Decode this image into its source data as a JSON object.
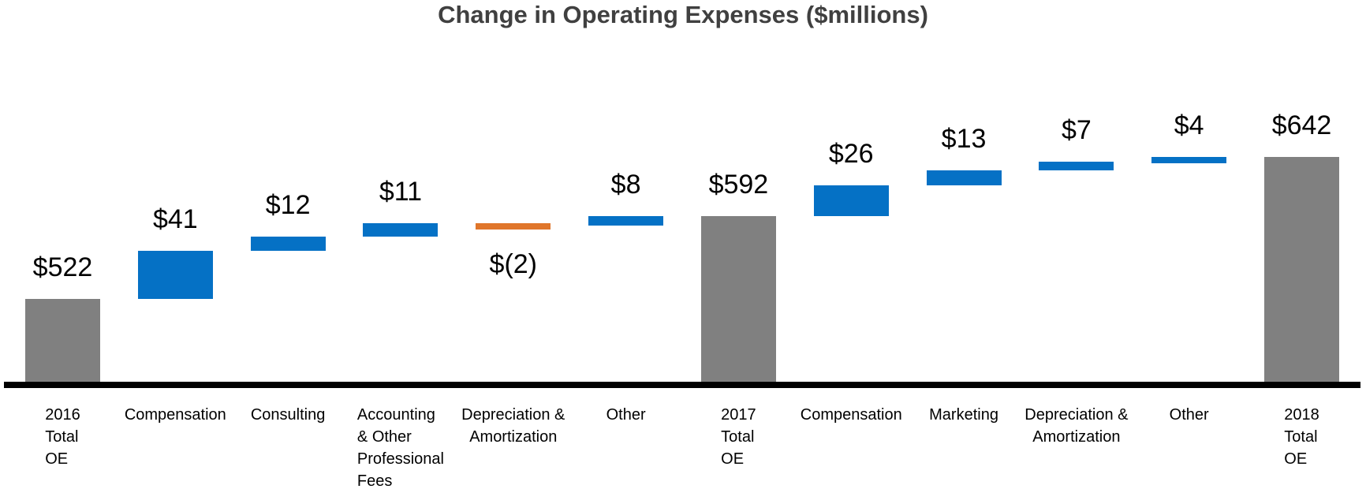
{
  "chart_data": {
    "type": "waterfall",
    "title": "Change in Operating Expenses ($millions)",
    "unit": "$millions",
    "axis": {
      "baseline_value": 452,
      "y_axis_visible": false,
      "gridlines": false,
      "legend": "none",
      "x_axis_line": true
    },
    "colors": {
      "total_bar": "#808080",
      "increase_bar": "#0571C5",
      "decrease_bar": "#E0762B",
      "axis_line": "#000000",
      "title_text": "#404040",
      "label_text": "#000000"
    },
    "totals": {
      "2016": 522,
      "2017": 592,
      "2018": 642
    },
    "categories": [
      {
        "label_lines": [
          "2016",
          "Total",
          "OE"
        ],
        "label_align": "left",
        "kind": "total",
        "value": 522,
        "value_label": "$522",
        "value_label_position": "above"
      },
      {
        "label_lines": [
          "Compensation"
        ],
        "label_align": "center",
        "kind": "increase",
        "value": 41,
        "value_label": "$41",
        "value_label_position": "above"
      },
      {
        "label_lines": [
          "Consulting"
        ],
        "label_align": "center",
        "kind": "increase",
        "value": 12,
        "value_label": "$12",
        "value_label_position": "above"
      },
      {
        "label_lines": [
          "Accounting",
          "& Other",
          "Professional",
          "Fees"
        ],
        "label_align": "left",
        "kind": "increase",
        "value": 11,
        "value_label": "$11",
        "value_label_position": "above"
      },
      {
        "label_lines": [
          "Depreciation &",
          "Amortization"
        ],
        "label_align": "center",
        "kind": "decrease",
        "value": -2,
        "value_label": "$(2)",
        "value_label_position": "below"
      },
      {
        "label_lines": [
          "Other"
        ],
        "label_align": "center",
        "kind": "increase",
        "value": 8,
        "value_label": "$8",
        "value_label_position": "above"
      },
      {
        "label_lines": [
          "2017",
          "Total",
          "OE"
        ],
        "label_align": "left",
        "kind": "total",
        "value": 592,
        "value_label": "$592",
        "value_label_position": "above"
      },
      {
        "label_lines": [
          "Compensation"
        ],
        "label_align": "center",
        "kind": "increase",
        "value": 26,
        "value_label": "$26",
        "value_label_position": "above"
      },
      {
        "label_lines": [
          "Marketing"
        ],
        "label_align": "center",
        "kind": "increase",
        "value": 13,
        "value_label": "$13",
        "value_label_position": "above"
      },
      {
        "label_lines": [
          "Depreciation &",
          "Amortization"
        ],
        "label_align": "center",
        "kind": "increase",
        "value": 7,
        "value_label": "$7",
        "value_label_position": "above"
      },
      {
        "label_lines": [
          "Other"
        ],
        "label_align": "center",
        "kind": "increase",
        "value": 4,
        "value_label": "$4",
        "value_label_position": "above"
      },
      {
        "label_lines": [
          "2018",
          "Total",
          "OE"
        ],
        "label_align": "left",
        "kind": "total",
        "value": 642,
        "value_label": "$642",
        "value_label_position": "above"
      }
    ]
  }
}
